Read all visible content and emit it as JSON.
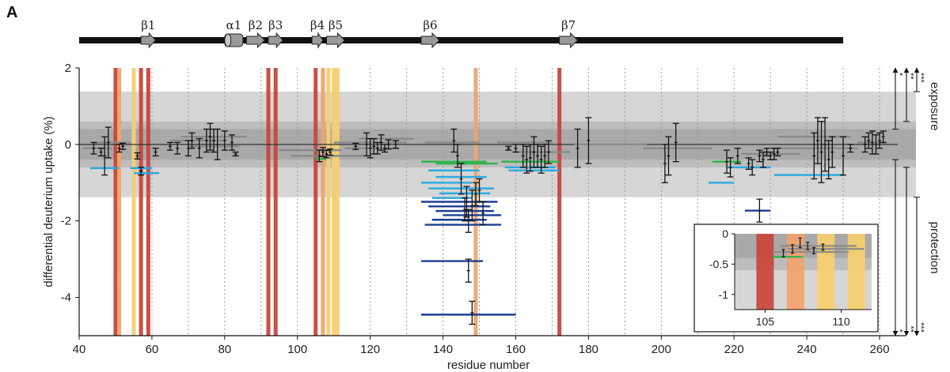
{
  "panel_label": "A",
  "chart_data": {
    "type": "scatter",
    "xlabel": "residue number",
    "ylabel": "differential deuterium uptake (%)",
    "xlim": [
      40,
      270
    ],
    "ylim": [
      -5,
      2
    ],
    "x_ticks": [
      40,
      60,
      80,
      100,
      120,
      140,
      160,
      180,
      200,
      220,
      240,
      260
    ],
    "y_ticks": [
      2,
      0,
      -2,
      -4
    ],
    "grid": "vertical dotted every 10 residues",
    "bands": [
      {
        "y0": -1.38,
        "y1": 1.38,
        "color": "#d6d6d6"
      },
      {
        "y0": -0.6,
        "y1": 0.6,
        "color": "#bdbdbd"
      },
      {
        "y0": -0.4,
        "y1": 0.4,
        "color": "#a9a9a9"
      }
    ],
    "secondary_structure": {
      "range": [
        40,
        250
      ],
      "strands": [
        {
          "label": "β1",
          "start": 57,
          "end": 61
        },
        {
          "label": "β2",
          "start": 86,
          "end": 91
        },
        {
          "label": "β3",
          "start": 92,
          "end": 96
        },
        {
          "label": "β4",
          "start": 104,
          "end": 107
        },
        {
          "label": "β5",
          "start": 108,
          "end": 113
        },
        {
          "label": "β6",
          "start": 134,
          "end": 139
        },
        {
          "label": "β7",
          "start": 172,
          "end": 177
        }
      ],
      "helices": [
        {
          "label": "α1",
          "start": 80,
          "end": 85
        }
      ]
    },
    "highlight_lines": [
      {
        "x": 50,
        "color": "#c9453a"
      },
      {
        "x": 51,
        "color": "#f0a36d"
      },
      {
        "x": 55,
        "color": "#f7cf6e"
      },
      {
        "x": 57,
        "color": "#c9453a"
      },
      {
        "x": 59,
        "color": "#c9453a"
      },
      {
        "x": 92,
        "color": "#c9453a"
      },
      {
        "x": 94,
        "color": "#c9453a"
      },
      {
        "x": 105,
        "color": "#c9453a"
      },
      {
        "x": 107,
        "color": "#f0a36d"
      },
      {
        "x": 108.5,
        "color": "#f7cf6e"
      },
      {
        "x": 110,
        "color": "#f7cf6e"
      },
      {
        "x": 111,
        "color": "#f7cf6e"
      },
      {
        "x": 149,
        "color": "#f0a36d"
      },
      {
        "x": 172,
        "color": "#c9453a"
      }
    ],
    "peptides": [
      {
        "x0": 41,
        "x1": 49,
        "y": -0.1,
        "color": "#8a8a8a"
      },
      {
        "x0": 44,
        "x1": 54,
        "y": 0.05,
        "color": "#8a8a8a"
      },
      {
        "x0": 43,
        "x1": 51,
        "y": -0.62,
        "color": "#27aae1"
      },
      {
        "x0": 54,
        "x1": 60,
        "y": -0.62,
        "color": "#27aae1"
      },
      {
        "x0": 55,
        "x1": 62,
        "y": -0.75,
        "color": "#27aae1"
      },
      {
        "x0": 65,
        "x1": 80,
        "y": 0.1,
        "color": "#8a8a8a"
      },
      {
        "x0": 68,
        "x1": 86,
        "y": 0.2,
        "color": "#8a8a8a"
      },
      {
        "x0": 70,
        "x1": 84,
        "y": -0.05,
        "color": "#8a8a8a"
      },
      {
        "x0": 95,
        "x1": 112,
        "y": -0.15,
        "color": "#8a8a8a"
      },
      {
        "x0": 98,
        "x1": 118,
        "y": -0.3,
        "color": "#8a8a8a"
      },
      {
        "x0": 105,
        "x1": 108,
        "y": -0.38,
        "color": "#2db34a"
      },
      {
        "x0": 110,
        "x1": 130,
        "y": 0.05,
        "color": "#8a8a8a"
      },
      {
        "x0": 113,
        "x1": 128,
        "y": -0.1,
        "color": "#8a8a8a"
      },
      {
        "x0": 117,
        "x1": 132,
        "y": 0.15,
        "color": "#8a8a8a"
      },
      {
        "x0": 135,
        "x1": 150,
        "y": 0.05,
        "color": "#8a8a8a"
      },
      {
        "x0": 134,
        "x1": 152,
        "y": -0.45,
        "color": "#2db34a"
      },
      {
        "x0": 138,
        "x1": 155,
        "y": -0.5,
        "color": "#2db34a"
      },
      {
        "x0": 136,
        "x1": 150,
        "y": -0.68,
        "color": "#27aae1"
      },
      {
        "x0": 138,
        "x1": 152,
        "y": -0.85,
        "color": "#27aae1"
      },
      {
        "x0": 134,
        "x1": 148,
        "y": -1.0,
        "color": "#27aae1"
      },
      {
        "x0": 136,
        "x1": 154,
        "y": -1.15,
        "color": "#27aae1"
      },
      {
        "x0": 139,
        "x1": 153,
        "y": -1.28,
        "color": "#27aae1"
      },
      {
        "x0": 137,
        "x1": 148,
        "y": -1.4,
        "color": "#27aae1"
      },
      {
        "x0": 134,
        "x1": 155,
        "y": -1.5,
        "color": "#1c3f94"
      },
      {
        "x0": 136,
        "x1": 153,
        "y": -1.62,
        "color": "#1c3f94"
      },
      {
        "x0": 138,
        "x1": 154,
        "y": -1.74,
        "color": "#1c3f94"
      },
      {
        "x0": 140,
        "x1": 156,
        "y": -1.85,
        "color": "#1c3f94"
      },
      {
        "x0": 137,
        "x1": 152,
        "y": -1.97,
        "color": "#1c3f94"
      },
      {
        "x0": 135,
        "x1": 156,
        "y": -2.1,
        "color": "#1c3f94"
      },
      {
        "x0": 134,
        "x1": 151,
        "y": -3.05,
        "color": "#1c3f94"
      },
      {
        "x0": 134,
        "x1": 160,
        "y": -4.45,
        "color": "#1c3f94"
      },
      {
        "x0": 156,
        "x1": 172,
        "y": -0.45,
        "color": "#2db34a"
      },
      {
        "x0": 157,
        "x1": 171,
        "y": -0.6,
        "color": "#27aae1"
      },
      {
        "x0": 158,
        "x1": 172,
        "y": -0.68,
        "color": "#27aae1"
      },
      {
        "x0": 155,
        "x1": 170,
        "y": 0.05,
        "color": "#8a8a8a"
      },
      {
        "x0": 160,
        "x1": 175,
        "y": -0.2,
        "color": "#8a8a8a"
      },
      {
        "x0": 176,
        "x1": 196,
        "y": 0.0,
        "color": "#8a8a8a"
      },
      {
        "x0": 195,
        "x1": 214,
        "y": -0.1,
        "color": "#8a8a8a"
      },
      {
        "x0": 214,
        "x1": 222,
        "y": -0.45,
        "color": "#2db34a"
      },
      {
        "x0": 213,
        "x1": 220,
        "y": -1.0,
        "color": "#27aae1"
      },
      {
        "x0": 218,
        "x1": 230,
        "y": -0.6,
        "color": "#27aae1"
      },
      {
        "x0": 223,
        "x1": 230,
        "y": -1.73,
        "color": "#1c3f94"
      },
      {
        "x0": 222,
        "x1": 238,
        "y": -0.25,
        "color": "#8a8a8a"
      },
      {
        "x0": 232,
        "x1": 252,
        "y": 0.2,
        "color": "#8a8a8a"
      },
      {
        "x0": 230,
        "x1": 254,
        "y": -0.1,
        "color": "#8a8a8a"
      },
      {
        "x0": 231,
        "x1": 250,
        "y": -0.8,
        "color": "#27aae1"
      },
      {
        "x0": 254,
        "x1": 262,
        "y": 0.05,
        "color": "#8a8a8a"
      }
    ],
    "error_bars": [
      {
        "x": 44,
        "y": -0.1,
        "err": 0.15
      },
      {
        "x": 46,
        "y": -0.2,
        "err": 0.1
      },
      {
        "x": 47,
        "y": -0.3,
        "err": 0.5
      },
      {
        "x": 48,
        "y": 0.05,
        "err": 0.4
      },
      {
        "x": 51,
        "y": -0.1,
        "err": 0.1
      },
      {
        "x": 52,
        "y": -0.05,
        "err": 0.08
      },
      {
        "x": 56,
        "y": -0.3,
        "err": 0.08
      },
      {
        "x": 57,
        "y": -0.7,
        "err": 0.1
      },
      {
        "x": 61,
        "y": -0.2,
        "err": 0.1
      },
      {
        "x": 65,
        "y": -0.05,
        "err": 0.1
      },
      {
        "x": 67,
        "y": -0.1,
        "err": 0.15
      },
      {
        "x": 70,
        "y": -0.1,
        "err": 0.2
      },
      {
        "x": 71,
        "y": 0.1,
        "err": 0.2
      },
      {
        "x": 73,
        "y": -0.1,
        "err": 0.25
      },
      {
        "x": 75,
        "y": 0.1,
        "err": 0.3
      },
      {
        "x": 76,
        "y": 0.2,
        "err": 0.35
      },
      {
        "x": 77,
        "y": 0.1,
        "err": 0.3
      },
      {
        "x": 78,
        "y": 0.0,
        "err": 0.4
      },
      {
        "x": 80,
        "y": 0.1,
        "err": 0.25
      },
      {
        "x": 82,
        "y": 0.05,
        "err": 0.2
      },
      {
        "x": 83,
        "y": -0.25,
        "err": 0.05
      },
      {
        "x": 106,
        "y": -0.3,
        "err": 0.15
      },
      {
        "x": 107,
        "y": -0.2,
        "err": 0.12
      },
      {
        "x": 108,
        "y": -0.25,
        "err": 0.1
      },
      {
        "x": 109,
        "y": -0.2,
        "err": 0.08
      },
      {
        "x": 116,
        "y": -0.05,
        "err": 0.08
      },
      {
        "x": 119,
        "y": 0.0,
        "err": 0.3
      },
      {
        "x": 120,
        "y": -0.1,
        "err": 0.25
      },
      {
        "x": 121,
        "y": -0.05,
        "err": 0.2
      },
      {
        "x": 122,
        "y": -0.1,
        "err": 0.15
      },
      {
        "x": 123,
        "y": 0.05,
        "err": 0.2
      },
      {
        "x": 124,
        "y": -0.1,
        "err": 0.1
      },
      {
        "x": 125,
        "y": 0.0,
        "err": 0.12
      },
      {
        "x": 127,
        "y": 0.0,
        "err": 0.1
      },
      {
        "x": 143,
        "y": 0.1,
        "err": 0.3
      },
      {
        "x": 144,
        "y": -0.3,
        "err": 0.3
      },
      {
        "x": 145,
        "y": -0.9,
        "err": 0.4
      },
      {
        "x": 146,
        "y": -1.7,
        "err": 0.3
      },
      {
        "x": 146.5,
        "y": -1.5,
        "err": 0.4
      },
      {
        "x": 147,
        "y": -2.0,
        "err": 0.3
      },
      {
        "x": 148,
        "y": -1.6,
        "err": 0.4
      },
      {
        "x": 149,
        "y": -1.3,
        "err": 0.3
      },
      {
        "x": 150,
        "y": -1.2,
        "err": 0.3
      },
      {
        "x": 151,
        "y": -1.8,
        "err": 0.3
      },
      {
        "x": 147,
        "y": -3.3,
        "err": 0.3
      },
      {
        "x": 148,
        "y": -4.4,
        "err": 0.3
      },
      {
        "x": 158,
        "y": -0.1,
        "err": 0.05
      },
      {
        "x": 160,
        "y": -0.1,
        "err": 0.1
      },
      {
        "x": 162,
        "y": -0.3,
        "err": 0.3
      },
      {
        "x": 163,
        "y": -0.4,
        "err": 0.35
      },
      {
        "x": 164,
        "y": -0.35,
        "err": 0.35
      },
      {
        "x": 165,
        "y": -0.2,
        "err": 0.4
      },
      {
        "x": 166,
        "y": -0.3,
        "err": 0.3
      },
      {
        "x": 167,
        "y": -0.4,
        "err": 0.35
      },
      {
        "x": 168,
        "y": -0.3,
        "err": 0.3
      },
      {
        "x": 169,
        "y": -0.2,
        "err": 0.3
      },
      {
        "x": 177,
        "y": -0.1,
        "err": 0.5
      },
      {
        "x": 180,
        "y": 0.1,
        "err": 0.6
      },
      {
        "x": 201,
        "y": -0.5,
        "err": 0.5
      },
      {
        "x": 202,
        "y": -0.3,
        "err": 0.5
      },
      {
        "x": 204,
        "y": 0.05,
        "err": 0.5
      },
      {
        "x": 218,
        "y": -0.45,
        "err": 0.3
      },
      {
        "x": 219,
        "y": -0.6,
        "err": 0.25
      },
      {
        "x": 221,
        "y": -0.3,
        "err": 0.2
      },
      {
        "x": 224,
        "y": -0.5,
        "err": 0.15
      },
      {
        "x": 225,
        "y": -0.6,
        "err": 0.2
      },
      {
        "x": 227,
        "y": -0.3,
        "err": 0.15
      },
      {
        "x": 228,
        "y": -0.4,
        "err": 0.2
      },
      {
        "x": 229,
        "y": -0.2,
        "err": 0.1
      },
      {
        "x": 230,
        "y": -0.3,
        "err": 0.1
      },
      {
        "x": 231,
        "y": -0.25,
        "err": 0.15
      },
      {
        "x": 232,
        "y": -0.2,
        "err": 0.1
      },
      {
        "x": 227,
        "y": -1.73,
        "err": 0.3
      },
      {
        "x": 242,
        "y": -0.3,
        "err": 0.6
      },
      {
        "x": 243,
        "y": 0.1,
        "err": 0.6
      },
      {
        "x": 244,
        "y": -0.2,
        "err": 0.8
      },
      {
        "x": 245,
        "y": 0.0,
        "err": 0.7
      },
      {
        "x": 246,
        "y": -0.4,
        "err": 0.5
      },
      {
        "x": 247,
        "y": -0.2,
        "err": 0.4
      },
      {
        "x": 250,
        "y": -0.3,
        "err": 0.5
      },
      {
        "x": 252,
        "y": -0.1,
        "err": 0.1
      },
      {
        "x": 256,
        "y": 0.0,
        "err": 0.2
      },
      {
        "x": 257,
        "y": 0.1,
        "err": 0.2
      },
      {
        "x": 258,
        "y": 0.05,
        "err": 0.3
      },
      {
        "x": 259,
        "y": 0.0,
        "err": 0.25
      },
      {
        "x": 260,
        "y": 0.1,
        "err": 0.2
      },
      {
        "x": 261,
        "y": 0.2,
        "err": 0.15
      }
    ],
    "significance": {
      "exposure_label": "exposure",
      "protection_label": "protection",
      "markers": [
        "*",
        "**",
        "***"
      ]
    },
    "inset": {
      "xlim": [
        103,
        112
      ],
      "ylim": [
        -1.25,
        0
      ],
      "x_ticks": [
        105,
        110
      ],
      "y_ticks": [
        0,
        -0.5,
        -1
      ],
      "bands": [
        {
          "y0": -0.6,
          "y1": 0,
          "color": "#bdbdbd"
        },
        {
          "y0": -0.4,
          "y1": 0,
          "color": "#a9a9a9"
        }
      ],
      "highlight_columns": [
        {
          "x": 105,
          "color": "#c9453a"
        },
        {
          "x": 107,
          "color": "#f0a36d"
        },
        {
          "x": 109,
          "color": "#f7cf6e"
        },
        {
          "x": 111,
          "color": "#f7cf6e"
        }
      ],
      "peptides": [
        {
          "x0": 106,
          "x1": 111,
          "y": -0.2,
          "color": "#8a8a8a"
        },
        {
          "x0": 106.5,
          "x1": 111.5,
          "y": -0.25,
          "color": "#8a8a8a"
        },
        {
          "x0": 105.5,
          "x1": 110.5,
          "y": -0.3,
          "color": "#8a8a8a"
        },
        {
          "x0": 105.5,
          "x1": 107.5,
          "y": -0.38,
          "color": "#2db34a"
        }
      ],
      "error_bars": [
        {
          "x": 106.2,
          "y": -0.32,
          "err": 0.06
        },
        {
          "x": 106.8,
          "y": -0.25,
          "err": 0.07
        },
        {
          "x": 107.3,
          "y": -0.15,
          "err": 0.08
        },
        {
          "x": 107.8,
          "y": -0.2,
          "err": 0.06
        },
        {
          "x": 108.2,
          "y": -0.28,
          "err": 0.05
        },
        {
          "x": 108.8,
          "y": -0.22,
          "err": 0.05
        }
      ]
    }
  }
}
